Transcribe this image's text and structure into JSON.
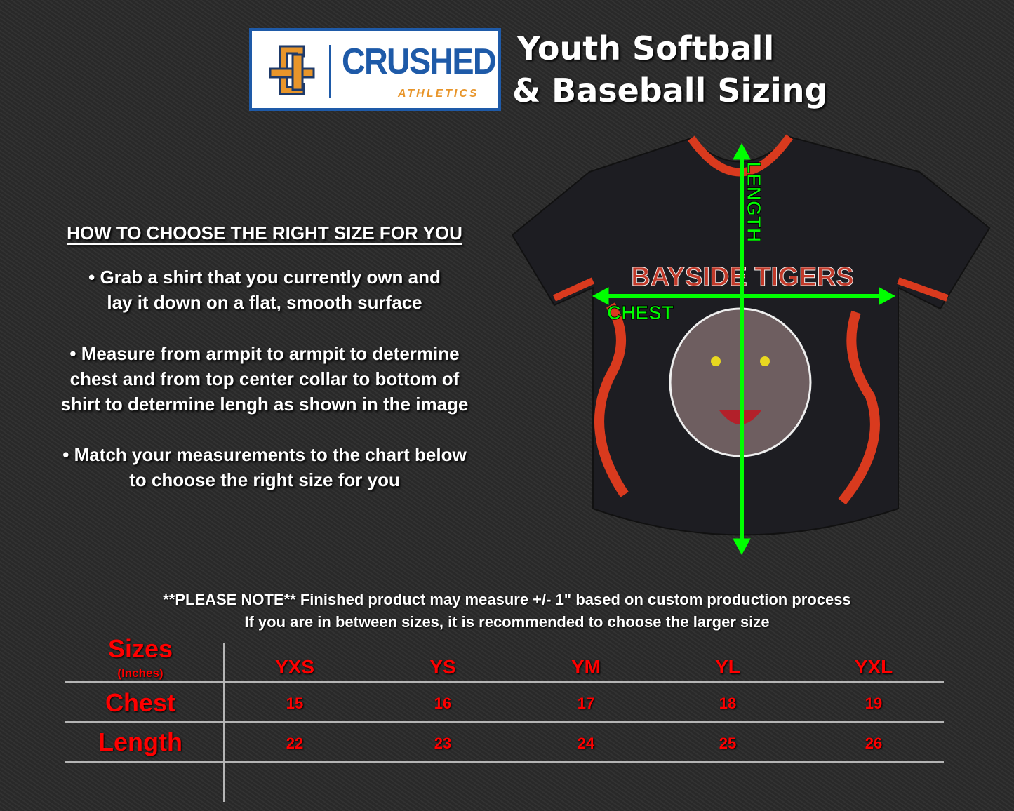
{
  "brand": {
    "name": "CRUSHED",
    "subtitle": "ATHLETICS",
    "monogram": "CA",
    "colors": {
      "blue": "#1e5aa8",
      "orange": "#e8952a"
    }
  },
  "title": {
    "line1": "Youth Softball",
    "line2": "& Baseball Sizing"
  },
  "instructions": {
    "heading": "HOW TO CHOOSE THE RIGHT SIZE FOR YOU",
    "bullets": [
      [
        "• Grab a shirt that you currently own and",
        "lay it down on a flat, smooth surface"
      ],
      [
        "• Measure from armpit to armpit to determine",
        "chest and from top center collar to bottom of",
        "shirt to determine lengh as shown in the image"
      ],
      [
        "• Match your measurements to the chart below",
        "to choose the right size for you"
      ]
    ]
  },
  "jersey": {
    "team_lettering": "BAYSIDE TIGERS",
    "length_label": "LENGTH",
    "chest_label": "CHEST",
    "arrow_color": "#00ff00"
  },
  "notes": {
    "line1": "**PLEASE NOTE** Finished product may measure +/- 1\" based on custom production process",
    "line2": "If you are in between sizes, it is recommended to choose the larger size"
  },
  "size_table": {
    "header": {
      "label": "Sizes",
      "unit": "(Inches)"
    },
    "sizes": [
      "YXS",
      "YS",
      "YM",
      "YL",
      "YXL"
    ],
    "rows": [
      {
        "label": "Chest",
        "values": [
          "15",
          "16",
          "17",
          "18",
          "19"
        ]
      },
      {
        "label": "Length",
        "values": [
          "22",
          "23",
          "24",
          "25",
          "26"
        ]
      }
    ],
    "accent": "#ff0000"
  }
}
